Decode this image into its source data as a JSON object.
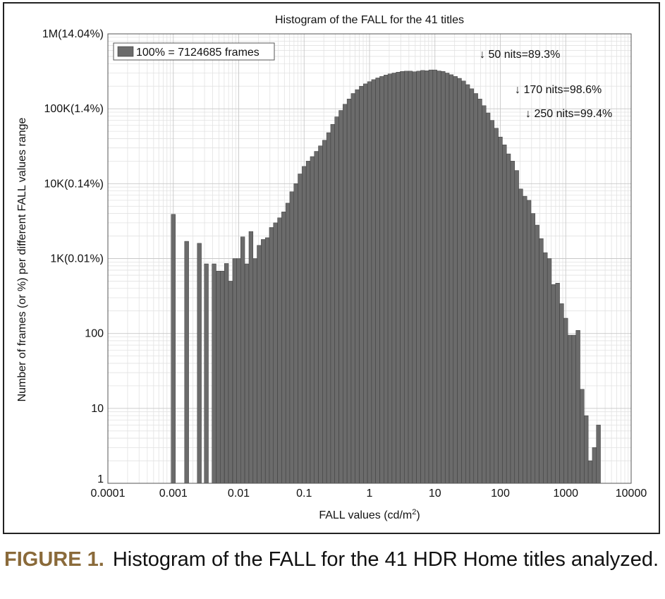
{
  "chart_data": {
    "type": "bar",
    "title": "Histogram of the FALL for the 41 titles",
    "xlabel": "FALL values (cd/m²)",
    "ylabel": "Number of frames (or %) per different FALL values  range",
    "x_scale": "log",
    "y_scale": "log",
    "xlim": [
      0.0001,
      10000
    ],
    "ylim": [
      1,
      1000000
    ],
    "grid": true,
    "x_ticks": [
      {
        "value": 0.0001,
        "label": "0.0001"
      },
      {
        "value": 0.001,
        "label": "0.001"
      },
      {
        "value": 0.01,
        "label": "0.01"
      },
      {
        "value": 0.1,
        "label": "0.1"
      },
      {
        "value": 1,
        "label": "1"
      },
      {
        "value": 10,
        "label": "10"
      },
      {
        "value": 100,
        "label": "100"
      },
      {
        "value": 1000,
        "label": "1000"
      },
      {
        "value": 10000,
        "label": "10000"
      }
    ],
    "y_ticks": [
      {
        "value": 1,
        "label": "1"
      },
      {
        "value": 10,
        "label": "10"
      },
      {
        "value": 100,
        "label": "100"
      },
      {
        "value": 1000,
        "label": "1K(0.01%)"
      },
      {
        "value": 10000,
        "label": "10K(0.14%)"
      },
      {
        "value": 100000,
        "label": "100K(1.4%)"
      },
      {
        "value": 1000000,
        "label": "1M(14.04%)"
      }
    ],
    "legend": {
      "position": "top-left",
      "label": "100% = 7124685 frames",
      "color": "#6b6b6b"
    },
    "bar_color": "#6b6b6b",
    "bar_edge_color": "#3a3a3a",
    "bin_width_decades": 0.0625,
    "bins": [
      {
        "x": 0.001,
        "count": 3900
      },
      {
        "x": 0.0016,
        "count": 1700
      },
      {
        "x": 0.0025,
        "count": 1600
      },
      {
        "x": 0.0032,
        "count": 850
      },
      {
        "x": 0.0042,
        "count": 850
      },
      {
        "x": 0.0049,
        "count": 680
      },
      {
        "x": 0.0056,
        "count": 680
      },
      {
        "x": 0.0065,
        "count": 860
      },
      {
        "x": 0.0075,
        "count": 500
      },
      {
        "x": 0.0087,
        "count": 1000
      },
      {
        "x": 0.01,
        "count": 1000
      },
      {
        "x": 0.0115,
        "count": 1950
      },
      {
        "x": 0.0133,
        "count": 850
      },
      {
        "x": 0.0154,
        "count": 2300
      },
      {
        "x": 0.0178,
        "count": 1000
      },
      {
        "x": 0.0205,
        "count": 1500
      },
      {
        "x": 0.0237,
        "count": 1800
      },
      {
        "x": 0.0274,
        "count": 1900
      },
      {
        "x": 0.0316,
        "count": 2600
      },
      {
        "x": 0.0365,
        "count": 3000
      },
      {
        "x": 0.0422,
        "count": 3500
      },
      {
        "x": 0.0487,
        "count": 4200
      },
      {
        "x": 0.0562,
        "count": 5500
      },
      {
        "x": 0.0649,
        "count": 7800
      },
      {
        "x": 0.075,
        "count": 10000
      },
      {
        "x": 0.0866,
        "count": 13500
      },
      {
        "x": 0.1,
        "count": 17000
      },
      {
        "x": 0.1155,
        "count": 20000
      },
      {
        "x": 0.1334,
        "count": 23000
      },
      {
        "x": 0.154,
        "count": 27000
      },
      {
        "x": 0.1778,
        "count": 32000
      },
      {
        "x": 0.2054,
        "count": 38000
      },
      {
        "x": 0.2371,
        "count": 48000
      },
      {
        "x": 0.2738,
        "count": 62000
      },
      {
        "x": 0.3162,
        "count": 78000
      },
      {
        "x": 0.3652,
        "count": 95000
      },
      {
        "x": 0.4217,
        "count": 115000
      },
      {
        "x": 0.487,
        "count": 135000
      },
      {
        "x": 0.5623,
        "count": 160000
      },
      {
        "x": 0.6494,
        "count": 180000
      },
      {
        "x": 0.7499,
        "count": 200000
      },
      {
        "x": 0.866,
        "count": 215000
      },
      {
        "x": 1.0,
        "count": 230000
      },
      {
        "x": 1.1548,
        "count": 245000
      },
      {
        "x": 1.3335,
        "count": 258000
      },
      {
        "x": 1.54,
        "count": 270000
      },
      {
        "x": 1.7783,
        "count": 282000
      },
      {
        "x": 2.0535,
        "count": 292000
      },
      {
        "x": 2.3714,
        "count": 300000
      },
      {
        "x": 2.7384,
        "count": 308000
      },
      {
        "x": 3.1623,
        "count": 315000
      },
      {
        "x": 3.6517,
        "count": 318000
      },
      {
        "x": 4.217,
        "count": 318000
      },
      {
        "x": 4.8697,
        "count": 312000
      },
      {
        "x": 5.6234,
        "count": 318000
      },
      {
        "x": 6.4938,
        "count": 325000
      },
      {
        "x": 7.4989,
        "count": 322000
      },
      {
        "x": 8.6596,
        "count": 330000
      },
      {
        "x": 10.0,
        "count": 330000
      },
      {
        "x": 11.548,
        "count": 320000
      },
      {
        "x": 13.335,
        "count": 315000
      },
      {
        "x": 15.399,
        "count": 300000
      },
      {
        "x": 17.783,
        "count": 285000
      },
      {
        "x": 20.535,
        "count": 270000
      },
      {
        "x": 23.714,
        "count": 255000
      },
      {
        "x": 27.384,
        "count": 235000
      },
      {
        "x": 31.623,
        "count": 210000
      },
      {
        "x": 36.517,
        "count": 185000
      },
      {
        "x": 42.17,
        "count": 160000
      },
      {
        "x": 48.697,
        "count": 135000
      },
      {
        "x": 56.234,
        "count": 110000
      },
      {
        "x": 64.938,
        "count": 88000
      },
      {
        "x": 74.989,
        "count": 70000
      },
      {
        "x": 86.596,
        "count": 55000
      },
      {
        "x": 100.0,
        "count": 42000
      },
      {
        "x": 115.48,
        "count": 33000
      },
      {
        "x": 133.35,
        "count": 25000
      },
      {
        "x": 153.99,
        "count": 20000
      },
      {
        "x": 177.83,
        "count": 15000
      },
      {
        "x": 205.35,
        "count": 8500
      },
      {
        "x": 237.14,
        "count": 6800
      },
      {
        "x": 273.84,
        "count": 6000
      },
      {
        "x": 316.23,
        "count": 4000
      },
      {
        "x": 365.17,
        "count": 2800
      },
      {
        "x": 421.7,
        "count": 1850
      },
      {
        "x": 486.97,
        "count": 1200
      },
      {
        "x": 562.34,
        "count": 1000
      },
      {
        "x": 649.38,
        "count": 450
      },
      {
        "x": 749.89,
        "count": 470
      },
      {
        "x": 865.96,
        "count": 250
      },
      {
        "x": 1000.0,
        "count": 160
      },
      {
        "x": 1154.8,
        "count": 95
      },
      {
        "x": 1333.5,
        "count": 95
      },
      {
        "x": 1539.9,
        "count": 110
      },
      {
        "x": 1778.3,
        "count": 18
      },
      {
        "x": 2053.5,
        "count": 8
      },
      {
        "x": 2371.4,
        "count": 2
      },
      {
        "x": 2738.4,
        "count": 3
      },
      {
        "x": 3162.3,
        "count": 6
      }
    ],
    "annotations": [
      {
        "text": "↓ 50 nits=89.3%",
        "anchor_x": 50
      },
      {
        "text": "↓ 170 nits=98.6%",
        "anchor_x": 170
      },
      {
        "text": "↓ 250 nits=99.4%",
        "anchor_x": 250
      }
    ]
  },
  "caption": {
    "label": "FIGURE 1.",
    "text": "Histogram of the FALL for the 41 HDR Home titles analyzed."
  }
}
